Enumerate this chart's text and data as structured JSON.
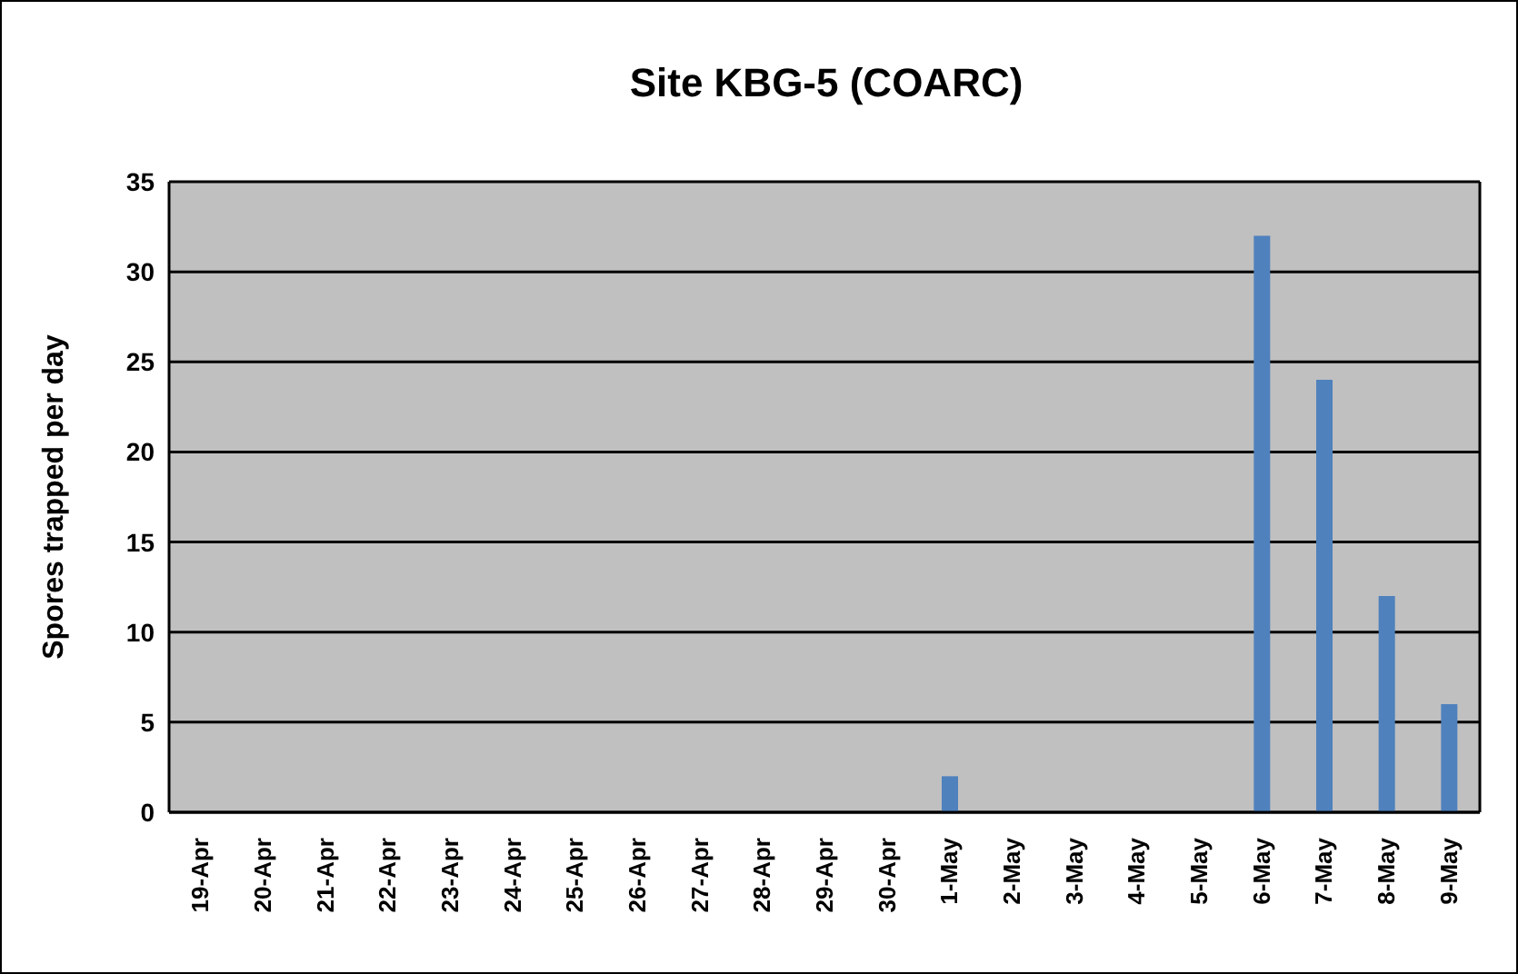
{
  "chart_data": {
    "type": "bar",
    "title": "Site KBG-5 (COARC)",
    "ylabel": "Spores trapped per day",
    "categories": [
      "19-Apr",
      "20-Apr",
      "21-Apr",
      "22-Apr",
      "23-Apr",
      "24-Apr",
      "25-Apr",
      "26-Apr",
      "27-Apr",
      "28-Apr",
      "29-Apr",
      "30-Apr",
      "1-May",
      "2-May",
      "3-May",
      "4-May",
      "5-May",
      "6-May",
      "7-May",
      "8-May",
      "9-May"
    ],
    "values": [
      0,
      0,
      0,
      0,
      0,
      0,
      0,
      0,
      0,
      0,
      0,
      0,
      2,
      0,
      0,
      0,
      0,
      32,
      24,
      12,
      6
    ],
    "color": "#4f81bd",
    "ylim": [
      0,
      35
    ],
    "yticks": [
      0,
      5,
      10,
      15,
      20,
      25,
      30,
      35
    ],
    "grid": "y"
  }
}
